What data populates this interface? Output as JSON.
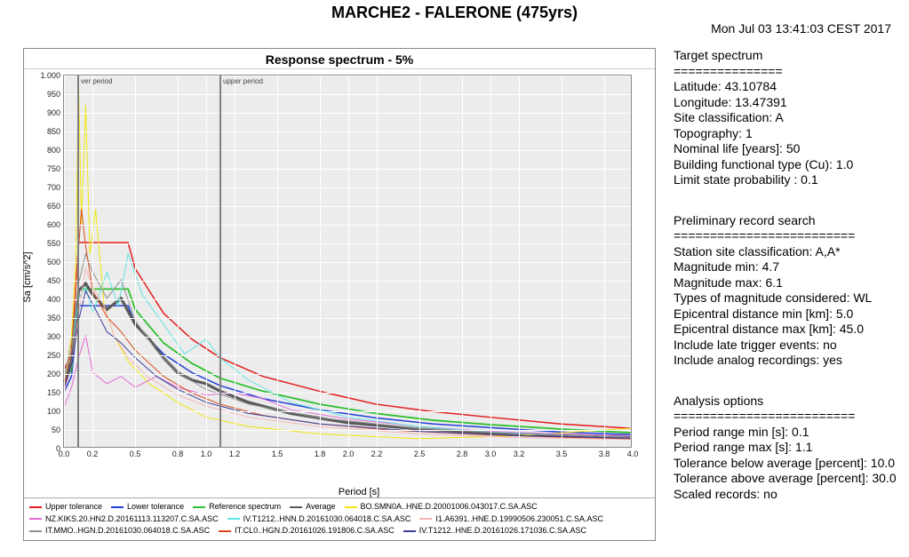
{
  "title": "MARCHE2 - FALERONE (475yrs)",
  "timestamp": "Mon Jul 03 13:41:03 CEST 2017",
  "chart": {
    "title": "Response spectrum - 5%",
    "xlabel": "Period [s]",
    "ylabel": "Sa [cm/s^2]",
    "xlim": [
      0.0,
      4.0
    ],
    "ylim": [
      0.0,
      1000
    ],
    "xticks": [
      0.0,
      0.2,
      0.5,
      0.8,
      1.0,
      1.2,
      1.5,
      1.8,
      2.0,
      2.2,
      2.5,
      2.8,
      3.0,
      3.2,
      3.5,
      3.8,
      4.0
    ],
    "yticks": [
      0,
      50,
      100,
      150,
      200,
      250,
      300,
      350,
      400,
      450,
      500,
      550,
      600,
      650,
      700,
      750,
      800,
      850,
      900,
      950,
      1000
    ],
    "xtick_labels": [
      "0.0",
      "0.2",
      "0.5",
      "0.8",
      "1.0",
      "1.2",
      "1.5",
      "1.8",
      "2.0",
      "2.2",
      "2.5",
      "2.8",
      "3.0",
      "3.2",
      "3.5",
      "3.8",
      "4.0"
    ],
    "ytick_labels": [
      "0",
      "50",
      "100",
      "150",
      "200",
      "250",
      "300",
      "350",
      "400",
      "450",
      "500",
      "550",
      "600",
      "650",
      "700",
      "750",
      "800",
      "850",
      "900",
      "950",
      "1.000"
    ],
    "grid_color": "#ffffff",
    "plot_bg": "#ececec",
    "markers": [
      {
        "label": "ver period",
        "x": 0.1,
        "color": "#808080"
      },
      {
        "label": "upper period",
        "x": 1.1,
        "color": "#808080"
      }
    ],
    "series": [
      {
        "name": "Upper tolerance",
        "color": "#e31a1a",
        "width": 1.5,
        "pts": [
          [
            0,
            210
          ],
          [
            0.05,
            250
          ],
          [
            0.1,
            550
          ],
          [
            0.15,
            550
          ],
          [
            0.45,
            550
          ],
          [
            0.5,
            480
          ],
          [
            0.7,
            360
          ],
          [
            0.9,
            290
          ],
          [
            1.1,
            240
          ],
          [
            1.4,
            190
          ],
          [
            1.8,
            150
          ],
          [
            2.2,
            115
          ],
          [
            2.6,
            95
          ],
          [
            3.0,
            80
          ],
          [
            3.5,
            62
          ],
          [
            4.0,
            50
          ]
        ]
      },
      {
        "name": "Lower tolerance",
        "color": "#1f3fd6",
        "width": 1.5,
        "pts": [
          [
            0,
            150
          ],
          [
            0.05,
            190
          ],
          [
            0.1,
            380
          ],
          [
            0.15,
            380
          ],
          [
            0.45,
            380
          ],
          [
            0.5,
            330
          ],
          [
            0.7,
            250
          ],
          [
            0.9,
            200
          ],
          [
            1.1,
            165
          ],
          [
            1.4,
            130
          ],
          [
            1.8,
            100
          ],
          [
            2.2,
            78
          ],
          [
            2.6,
            62
          ],
          [
            3.0,
            52
          ],
          [
            3.5,
            40
          ],
          [
            4.0,
            33
          ]
        ]
      },
      {
        "name": "Reference spectrum",
        "color": "#2fbf2f",
        "width": 1.8,
        "pts": [
          [
            0,
            170
          ],
          [
            0.05,
            210
          ],
          [
            0.1,
            425
          ],
          [
            0.15,
            425
          ],
          [
            0.45,
            425
          ],
          [
            0.5,
            370
          ],
          [
            0.7,
            280
          ],
          [
            0.9,
            225
          ],
          [
            1.1,
            185
          ],
          [
            1.4,
            150
          ],
          [
            1.8,
            115
          ],
          [
            2.2,
            90
          ],
          [
            2.6,
            72
          ],
          [
            3.0,
            60
          ],
          [
            3.5,
            48
          ],
          [
            4.0,
            38
          ]
        ]
      },
      {
        "name": "Average",
        "color": "#595959",
        "width": 3.2,
        "pts": [
          [
            0,
            175
          ],
          [
            0.05,
            230
          ],
          [
            0.1,
            420
          ],
          [
            0.15,
            440
          ],
          [
            0.2,
            410
          ],
          [
            0.3,
            370
          ],
          [
            0.4,
            400
          ],
          [
            0.5,
            330
          ],
          [
            0.6,
            290
          ],
          [
            0.7,
            240
          ],
          [
            0.8,
            200
          ],
          [
            0.9,
            180
          ],
          [
            1.0,
            170
          ],
          [
            1.1,
            150
          ],
          [
            1.3,
            120
          ],
          [
            1.6,
            90
          ],
          [
            2.0,
            65
          ],
          [
            2.5,
            48
          ],
          [
            3.0,
            38
          ],
          [
            3.5,
            30
          ],
          [
            4.0,
            25
          ]
        ]
      },
      {
        "name": "BO.SMN0A..HNE.D.20001006.043017.C.SA.ASC",
        "color": "#f2e60a",
        "width": 1,
        "pts": [
          [
            0,
            170
          ],
          [
            0.05,
            300
          ],
          [
            0.08,
            500
          ],
          [
            0.1,
            980
          ],
          [
            0.12,
            600
          ],
          [
            0.15,
            920
          ],
          [
            0.18,
            520
          ],
          [
            0.22,
            640
          ],
          [
            0.28,
            380
          ],
          [
            0.35,
            300
          ],
          [
            0.45,
            230
          ],
          [
            0.6,
            170
          ],
          [
            0.8,
            120
          ],
          [
            1.0,
            80
          ],
          [
            1.3,
            55
          ],
          [
            1.8,
            35
          ],
          [
            2.5,
            22
          ],
          [
            3.2,
            30
          ],
          [
            4.0,
            50
          ]
        ]
      },
      {
        "name": "NZ.KIKS.20.HN2.D.20161113.113207.C.SA.ASC",
        "color": "#e36bd6",
        "width": 1,
        "pts": [
          [
            0,
            110
          ],
          [
            0.05,
            160
          ],
          [
            0.1,
            240
          ],
          [
            0.15,
            300
          ],
          [
            0.2,
            200
          ],
          [
            0.3,
            170
          ],
          [
            0.4,
            190
          ],
          [
            0.5,
            160
          ],
          [
            0.65,
            190
          ],
          [
            0.8,
            160
          ],
          [
            1.0,
            140
          ],
          [
            1.2,
            145
          ],
          [
            1.4,
            130
          ],
          [
            1.6,
            100
          ],
          [
            2.0,
            75
          ],
          [
            2.5,
            55
          ],
          [
            3.0,
            42
          ],
          [
            3.5,
            35
          ],
          [
            4.0,
            30
          ]
        ]
      },
      {
        "name": "IV.T1212..HNN.D.20161030.064018.C.SA.ASC",
        "color": "#5fe6e6",
        "width": 1,
        "pts": [
          [
            0,
            180
          ],
          [
            0.05,
            260
          ],
          [
            0.1,
            400
          ],
          [
            0.15,
            430
          ],
          [
            0.2,
            360
          ],
          [
            0.3,
            470
          ],
          [
            0.38,
            380
          ],
          [
            0.45,
            520
          ],
          [
            0.55,
            410
          ],
          [
            0.7,
            330
          ],
          [
            0.85,
            250
          ],
          [
            1.0,
            290
          ],
          [
            1.1,
            240
          ],
          [
            1.3,
            180
          ],
          [
            1.6,
            120
          ],
          [
            2.0,
            80
          ],
          [
            2.5,
            55
          ],
          [
            3.0,
            40
          ],
          [
            3.5,
            32
          ],
          [
            4.0,
            26
          ]
        ]
      },
      {
        "name": "I1.A6391..HNE.D.19990506.230051.C.SA.ASC",
        "color": "#f5b6b6",
        "width": 1,
        "pts": [
          [
            0,
            150
          ],
          [
            0.05,
            220
          ],
          [
            0.1,
            360
          ],
          [
            0.15,
            480
          ],
          [
            0.2,
            430
          ],
          [
            0.28,
            380
          ],
          [
            0.35,
            300
          ],
          [
            0.45,
            240
          ],
          [
            0.6,
            185
          ],
          [
            0.8,
            140
          ],
          [
            1.0,
            110
          ],
          [
            1.3,
            80
          ],
          [
            1.8,
            55
          ],
          [
            2.5,
            35
          ],
          [
            3.2,
            25
          ],
          [
            4.0,
            20
          ]
        ]
      },
      {
        "name": "IT.MMO..HGN.D.20161030.064018.C.SA.ASC",
        "color": "#8f8f8f",
        "width": 1,
        "pts": [
          [
            0,
            190
          ],
          [
            0.05,
            280
          ],
          [
            0.1,
            440
          ],
          [
            0.15,
            520
          ],
          [
            0.2,
            470
          ],
          [
            0.3,
            400
          ],
          [
            0.4,
            450
          ],
          [
            0.5,
            340
          ],
          [
            0.65,
            260
          ],
          [
            0.8,
            200
          ],
          [
            1.0,
            155
          ],
          [
            1.3,
            115
          ],
          [
            1.8,
            78
          ],
          [
            2.5,
            50
          ],
          [
            3.2,
            35
          ],
          [
            4.0,
            26
          ]
        ]
      },
      {
        "name": "IT.CL0..HGN.D.20161026.191806.C.SA.ASC",
        "color": "#d94a1a",
        "width": 1,
        "pts": [
          [
            0,
            170
          ],
          [
            0.05,
            260
          ],
          [
            0.08,
            430
          ],
          [
            0.12,
            640
          ],
          [
            0.15,
            540
          ],
          [
            0.2,
            420
          ],
          [
            0.3,
            350
          ],
          [
            0.4,
            310
          ],
          [
            0.5,
            260
          ],
          [
            0.7,
            190
          ],
          [
            0.9,
            145
          ],
          [
            1.1,
            115
          ],
          [
            1.4,
            85
          ],
          [
            1.8,
            62
          ],
          [
            2.3,
            45
          ],
          [
            3.0,
            32
          ],
          [
            3.6,
            25
          ],
          [
            4.0,
            22
          ]
        ]
      },
      {
        "name": "IV.T1212..HNE.D.20161026.171036.C.SA.ASC",
        "color": "#3b3b99",
        "width": 1,
        "pts": [
          [
            0,
            160
          ],
          [
            0.05,
            220
          ],
          [
            0.1,
            340
          ],
          [
            0.15,
            420
          ],
          [
            0.22,
            370
          ],
          [
            0.3,
            310
          ],
          [
            0.4,
            280
          ],
          [
            0.5,
            240
          ],
          [
            0.65,
            190
          ],
          [
            0.8,
            155
          ],
          [
            1.0,
            120
          ],
          [
            1.3,
            90
          ],
          [
            1.8,
            62
          ],
          [
            2.5,
            42
          ],
          [
            3.2,
            30
          ],
          [
            4.0,
            23
          ]
        ]
      }
    ]
  },
  "info": {
    "target_spectrum": {
      "header": "Target spectrum",
      "sep": "===============",
      "lines": [
        "Latitude: 43.10784",
        "Longitude: 13.47391",
        "Site classification: A",
        "Topography: 1",
        "Nominal life [years]: 50",
        "Building functional type (Cu): 1.0",
        "Limit state probability : 0.1"
      ]
    },
    "preliminary": {
      "header": "Preliminary record search",
      "sep": "=========================",
      "lines": [
        "Station site classification: A,A*",
        "Magnitude min: 4.7",
        "Magnitude max: 6.1",
        "Types of magnitude considered: WL",
        "Epicentral distance min [km]: 5.0",
        "Epicentral distance max [km]: 45.0",
        "Include late trigger events: no",
        "Include analog recordings: yes"
      ]
    },
    "analysis": {
      "header": "Analysis options",
      "sep": "=========================",
      "lines": [
        "Period range min [s]: 0.1",
        "Period range max [s]: 1.1",
        "Tolerance below average [percent]: 10.0",
        "Tolerance above average [percent]: 30.0",
        "Scaled records: no"
      ]
    }
  }
}
